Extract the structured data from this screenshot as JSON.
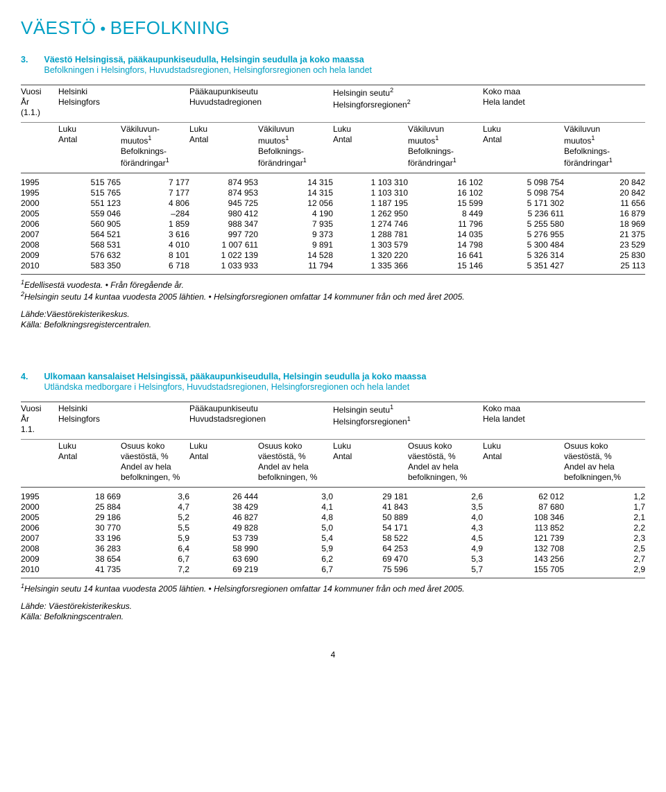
{
  "header": {
    "left": "VÄESTÖ",
    "right": "BEFOLKNING"
  },
  "tableA": {
    "num": "3.",
    "title_fi": "Väestö Helsingissä, pääkaupunkiseudulla, Helsingin seudulla ja koko maassa",
    "title_sv": "Befolkningen i Helsingfors, Huvudstadsregionen, Helsingforsregionen och hela landet",
    "col_year": "Vuosi",
    "col_year_sv": "År",
    "col_year_note": "(1.1.)",
    "groups": [
      {
        "fi": "Helsinki",
        "sv": "Helsingfors"
      },
      {
        "fi": "Pääkaupunkiseutu",
        "sv": "Huvudstadregionen"
      },
      {
        "fi_html": "Helsingin seutu<sup>2</sup>",
        "sv_html": "Helsingforsregionen<sup>2</sup>"
      },
      {
        "fi": "Koko maa",
        "sv": "Hela landet"
      }
    ],
    "subcols": {
      "luku": "Luku",
      "antal": "Antal",
      "muutos_fi_html": "Väkiluvun-<br>muutos<sup>1</sup>",
      "muutos_fi2_html": "Väkiluvun<br>muutos<sup>1</sup>",
      "muutos_sv_html": "Befolknings-<br>förändringar<sup>1</sup>"
    },
    "rows": [
      [
        "1995",
        "515 765",
        "7 177",
        "874 953",
        "14 315",
        "1 103 310",
        "16 102",
        "5 098 754",
        "20 842"
      ],
      [
        "1995",
        "515 765",
        "7 177",
        "874 953",
        "14 315",
        "1 103 310",
        "16 102",
        "5 098 754",
        "20 842"
      ],
      [
        "2000",
        "551 123",
        "4 806",
        "945 725",
        "12 056",
        "1 187 195",
        "15 599",
        "5 171 302",
        "11 656"
      ],
      [
        "2005",
        "559 046",
        "–284",
        "980 412",
        "4 190",
        "1 262 950",
        "8 449",
        "5 236 611",
        "16 879"
      ],
      [
        "2006",
        "560 905",
        "1 859",
        "988 347",
        "7 935",
        "1 274 746",
        "11 796",
        "5 255 580",
        "18 969"
      ],
      [
        "2007",
        "564 521",
        "3 616",
        "997 720",
        "9 373",
        "1 288 781",
        "14 035",
        "5 276 955",
        "21 375"
      ],
      [
        "2008",
        "568 531",
        "4 010",
        "1 007 611",
        "9 891",
        "1 303 579",
        "14 798",
        "5 300 484",
        "23 529"
      ],
      [
        "2009",
        "576 632",
        "8 101",
        "1 022 139",
        "14 528",
        "1 320 220",
        "16 641",
        "5 326 314",
        "25 830"
      ],
      [
        "2010",
        "583 350",
        "6 718",
        "1 033 933",
        "11 794",
        "1 335 366",
        "15 146",
        "5 351 427",
        "25 113"
      ]
    ],
    "footnote1_html": "<sup>1</sup>Edellisestä vuodesta. &bull; Från föregående år.",
    "footnote2_html": "<sup>2</sup>Helsingin seutu 14 kuntaa vuodesta 2005 lähtien. &bull; Helsingforsregionen omfattar 14 kommuner från och med året 2005.",
    "source_fi": "Lähde:Väestörekisterikeskus.",
    "source_sv": "Källa: Befolkningsregistercentralen."
  },
  "tableB": {
    "num": "4.",
    "title_fi": "Ulkomaan kansalaiset Helsingissä, pääkaupunkiseudulla, Helsingin seudulla ja koko maassa",
    "title_sv": "Utländska medborgare i Helsingfors, Huvudstadsregionen, Helsingforsregionen och hela landet",
    "col_year": "Vuosi",
    "col_year_sv": "År",
    "col_year_note": "1.1.",
    "groups": [
      {
        "fi": "Helsinki",
        "sv": "Helsingfors"
      },
      {
        "fi": "Pääkaupunkiseutu",
        "sv": "Huvudstadsregionen"
      },
      {
        "fi_html": "Helsingin seutu<sup>1</sup>",
        "sv_html": "Helsingforsregionen<sup>1</sup>"
      },
      {
        "fi": "Koko maa",
        "sv": "Hela landet"
      }
    ],
    "subcols": {
      "luku": "Luku",
      "antal": "Antal",
      "share_fi": "Osuus koko",
      "share_fi2": "väestöstä, %",
      "share_sv": "Andel av hela",
      "share_sv2": "befolkningen, %",
      "share_sv2_last": "befolkningen,%"
    },
    "rows": [
      [
        "1995",
        "18 669",
        "3,6",
        "26 444",
        "3,0",
        "29 181",
        "2,6",
        "62 012",
        "1,2"
      ],
      [
        "2000",
        "25 884",
        "4,7",
        "38 429",
        "4,1",
        "41 843",
        "3,5",
        "87 680",
        "1,7"
      ],
      [
        "2005",
        "29 186",
        "5,2",
        "46 827",
        "4,8",
        "50 889",
        "4,0",
        "108 346",
        "2,1"
      ],
      [
        "2006",
        "30 770",
        "5,5",
        "49 828",
        "5,0",
        "54 171",
        "4,3",
        "113 852",
        "2,2"
      ],
      [
        "2007",
        "33 196",
        "5,9",
        "53 739",
        "5,4",
        "58 522",
        "4,5",
        "121 739",
        "2,3"
      ],
      [
        "2008",
        "36 283",
        "6,4",
        "58 990",
        "5,9",
        "64 253",
        "4,9",
        "132 708",
        "2,5"
      ],
      [
        "2009",
        "38 654",
        "6,7",
        "63 690",
        "6,2",
        "69 470",
        "5,3",
        "143 256",
        "2,7"
      ],
      [
        "2010",
        "41 735",
        "7,2",
        "69 219",
        "6,7",
        "75 596",
        "5,7",
        "155 705",
        "2,9"
      ]
    ],
    "footnote1_html": "<sup>1</sup>Helsingin seutu 14 kuntaa vuodesta 2005 lähtien. &bull; Helsingforsregionen omfattar 14 kommuner från och med året 2005.",
    "source_fi": "Lähde: Väestörekisterikeskus.",
    "source_sv": "Källa: Befolkningscentralen."
  },
  "page_number": "4",
  "colors": {
    "accent": "#009FC4"
  }
}
